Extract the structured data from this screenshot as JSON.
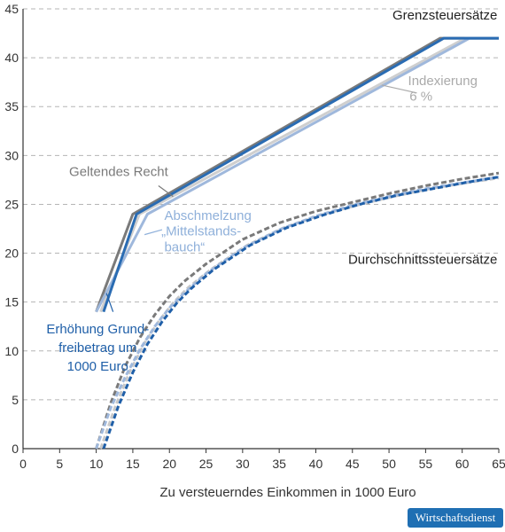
{
  "chart_data": {
    "type": "line",
    "xlabel": "Zu versteuerndes Einkommen in 1000 Euro",
    "ylabel": "",
    "xlim": [
      0,
      65
    ],
    "ylim": [
      0,
      45
    ],
    "x_ticks": [
      "0",
      "5",
      "10",
      "15",
      "20",
      "25",
      "30",
      "35",
      "40",
      "45",
      "50",
      "55",
      "60",
      "65"
    ],
    "y_ticks": [
      "0",
      "5",
      "10",
      "15",
      "20",
      "25",
      "30",
      "35",
      "40",
      "45"
    ],
    "grid": "horizontal dashed",
    "series": [
      {
        "name": "Geltendes Recht",
        "group": "Grenzsteuersätze",
        "color": "#7a7a7a",
        "dash": false,
        "x": [
          10,
          15,
          57,
          65
        ],
        "y": [
          14,
          24,
          42,
          42
        ]
      },
      {
        "name": "Indexierung 6 %",
        "group": "Grenzsteuersätze",
        "color": "#cfcfcf",
        "dash": false,
        "x": [
          10.6,
          15.9,
          60.4,
          65
        ],
        "y": [
          14,
          24,
          42,
          42
        ]
      },
      {
        "name": "Abschmelzung „Mittelstandsbauch“",
        "group": "Grenzsteuersätze",
        "color": "#9fb8dc",
        "dash": false,
        "x": [
          10,
          17,
          61,
          65
        ],
        "y": [
          14,
          24,
          42,
          42
        ]
      },
      {
        "name": "Erhöhung Grundfreibetrag um 1000 Euro",
        "group": "Grenzsteuersätze",
        "color": "#2a6cb3",
        "dash": false,
        "x": [
          11,
          15.5,
          57.5,
          65
        ],
        "y": [
          14,
          24,
          42,
          42
        ]
      },
      {
        "name": "Geltendes Recht",
        "group": "Durchschnittssteuersätze",
        "color": "#7a7a7a",
        "dash": true,
        "x": [
          10,
          12,
          14,
          16,
          18,
          20,
          22,
          25,
          30,
          35,
          40,
          45,
          50,
          55,
          60,
          65
        ],
        "y": [
          0,
          4.7,
          8.5,
          11.4,
          13.7,
          15.6,
          17.1,
          18.9,
          21.4,
          23.1,
          24.3,
          25.2,
          26.1,
          26.9,
          27.6,
          28.2
        ]
      },
      {
        "name": "Indexierung 6 %",
        "group": "Durchschnittssteuersätze",
        "color": "#c8c8c8",
        "dash": true,
        "x": [
          10.6,
          12.6,
          14.6,
          16.6,
          18.6,
          20.6,
          22.6,
          25.6,
          30.6,
          35.6,
          40.6,
          45.6,
          50.6,
          55.6,
          60.6,
          65
        ],
        "y": [
          0,
          4.3,
          7.9,
          10.8,
          13.1,
          15.0,
          16.5,
          18.3,
          20.8,
          22.6,
          23.9,
          24.9,
          25.8,
          26.6,
          27.2,
          27.7
        ]
      },
      {
        "name": "Abschmelzung „Mittelstandsbauch“",
        "group": "Durchschnittssteuersätze",
        "color": "#9fb8dc",
        "dash": true,
        "x": [
          10,
          12,
          14,
          16,
          18,
          20,
          22,
          25,
          30,
          35,
          40,
          45,
          50,
          55,
          60,
          65
        ],
        "y": [
          0,
          4.2,
          7.4,
          10.2,
          12.5,
          14.4,
          15.9,
          17.9,
          20.5,
          22.4,
          23.8,
          24.9,
          25.8,
          26.6,
          27.2,
          27.8
        ]
      },
      {
        "name": "Erhöhung Grundfreibetrag um 1000 Euro",
        "group": "Durchschnittssteuersätze",
        "color": "#1f5fa8",
        "dash": true,
        "x": [
          11,
          13,
          15,
          17,
          19,
          21,
          23,
          26,
          31,
          36,
          41,
          46,
          51,
          56,
          61,
          65
        ],
        "y": [
          0,
          4.3,
          7.8,
          10.7,
          13.0,
          14.9,
          16.4,
          18.3,
          20.8,
          22.6,
          23.9,
          25.0,
          25.9,
          26.6,
          27.3,
          27.8
        ]
      }
    ],
    "annotations": [
      {
        "name": "grenz-title",
        "text": "Grenzsteuersätze",
        "color": "#222222",
        "anchor": "end",
        "x": 64.8,
        "y": 43.9,
        "bold": false
      },
      {
        "name": "durchschnitt-title",
        "text": "Durchschnittssteuersätze",
        "color": "#222222",
        "anchor": "end",
        "x": 64.8,
        "y": 18.9,
        "bold": false
      },
      {
        "name": "label-geltendes",
        "text": "Geltendes Recht",
        "color": "#7a7a7a",
        "anchor": "start",
        "x": 6.3,
        "y": 27.9
      },
      {
        "name": "label-indexierung-1",
        "text": "Indexierung",
        "color": "#aaaaaa",
        "anchor": "start",
        "x": 52.6,
        "y": 37.2
      },
      {
        "name": "label-indexierung-2",
        "text": "6 %",
        "color": "#aaaaaa",
        "anchor": "start",
        "x": 52.8,
        "y": 35.6
      },
      {
        "name": "label-abschmelzung-1",
        "text": "Abschmelzung",
        "color": "#8fb0da",
        "anchor": "start",
        "x": 19.3,
        "y": 23.4
      },
      {
        "name": "label-abschmelzung-2",
        "text": "„Mittelstands-",
        "color": "#8fb0da",
        "anchor": "start",
        "x": 18.9,
        "y": 21.8
      },
      {
        "name": "label-abschmelzung-3",
        "text": "bauch“",
        "color": "#8fb0da",
        "anchor": "start",
        "x": 19.3,
        "y": 20.2
      },
      {
        "name": "label-erhoehung-1",
        "text": "Erhöhung Grund-",
        "color": "#1f5fa8",
        "anchor": "middle",
        "x": 10.2,
        "y": 11.8
      },
      {
        "name": "label-erhoehung-2",
        "text": "freibetrag um",
        "color": "#1f5fa8",
        "anchor": "middle",
        "x": 10.2,
        "y": 9.9
      },
      {
        "name": "label-erhoehung-3",
        "text": "1000 Euro",
        "color": "#1f5fa8",
        "anchor": "middle",
        "x": 10.2,
        "y": 8.0
      }
    ],
    "leaders": [
      {
        "name": "leader-geltendes",
        "color": "#7a7a7a",
        "x1": 18.5,
        "y1": 26.9,
        "x2": 20.5,
        "y2": 25.8
      },
      {
        "name": "leader-indexierung",
        "color": "#aaaaaa",
        "x1": 53.8,
        "y1": 36.4,
        "x2": 49.0,
        "y2": 37.2
      },
      {
        "name": "leader-abschmelzung",
        "color": "#8fb0da",
        "x1": 19.0,
        "y1": 22.4,
        "x2": 16.6,
        "y2": 21.9
      },
      {
        "name": "leader-erhoehung",
        "color": "#1f5fa8",
        "x1": 12.3,
        "y1": 14.0,
        "x2": 11.4,
        "y2": 15.9
      }
    ]
  },
  "badge": {
    "text": "Wirtschaftsdienst"
  }
}
